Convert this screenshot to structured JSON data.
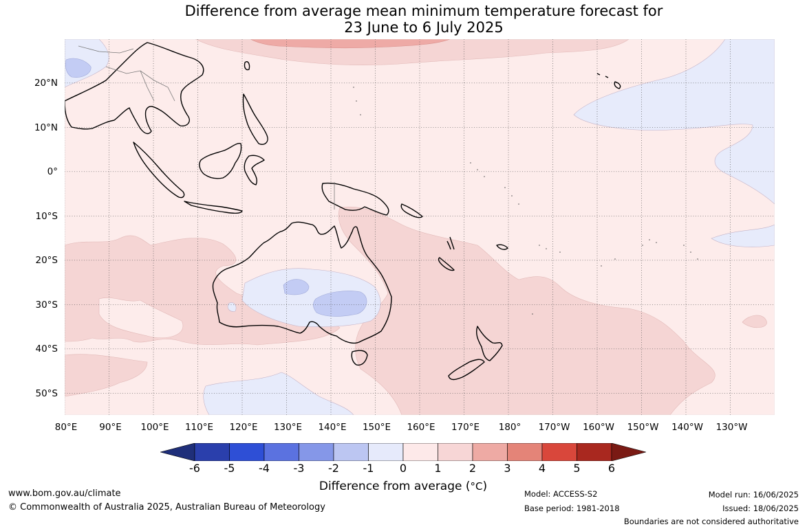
{
  "title_line1": "Difference from average mean minimum temperature forecast for",
  "title_line2": "23 June to 6 July 2025",
  "lon_labels": [
    "80°E",
    "90°E",
    "100°E",
    "110°E",
    "120°E",
    "130°E",
    "140°E",
    "150°E",
    "160°E",
    "170°E",
    "180°",
    "170°W",
    "160°W",
    "150°W",
    "140°W",
    "130°W"
  ],
  "lat_labels": [
    "20°N",
    "10°N",
    "0°",
    "10°S",
    "20°S",
    "30°S",
    "40°S",
    "50°S"
  ],
  "colorbar": {
    "ticks": [
      "-6",
      "-5",
      "-4",
      "-3",
      "-2",
      "-1",
      "0",
      "1",
      "2",
      "3",
      "4",
      "5",
      "6"
    ],
    "colors": [
      "#1f2f7a",
      "#2a3fac",
      "#2e4fd6",
      "#5b72e0",
      "#8597e8",
      "#bcc6f2",
      "#e6eafb",
      "#fde9e9",
      "#f7d6d6",
      "#eeaaa4",
      "#e48478",
      "#d9473b",
      "#a9281f",
      "#7a1a14"
    ],
    "label": "Difference from average (",
    "label_unit": "°C",
    "label_close": ")"
  },
  "footer": {
    "website": "www.bom.gov.au/climate",
    "copyright": "© Commonwealth of Australia 2025, Australian Bureau of Meteorology",
    "model": "Model: ACCESS-S2",
    "base_period": "Base period: 1981-2018",
    "model_run": "Model run: 16/06/2025",
    "issued": "Issued: 18/06/2025",
    "disclaimer": "Boundaries are not considered authoritative"
  },
  "map_colors": {
    "background": "#fdeceb",
    "band_0_1": "#fde9e9",
    "band_1_2": "#f5d5d4",
    "band_2_3": "#eeaaa6",
    "band_m1_0": "#e7ebfb",
    "band_m2_m1": "#c3ccf4",
    "land_outline": "#000000"
  }
}
